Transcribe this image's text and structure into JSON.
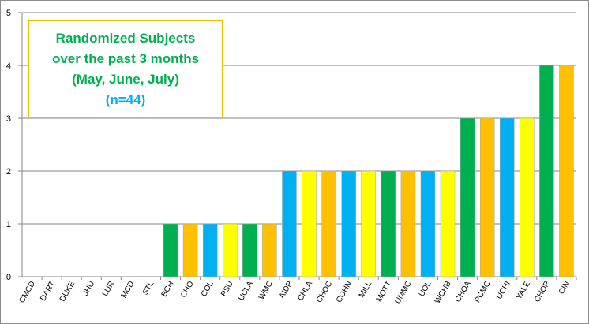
{
  "chart_data": {
    "type": "bar",
    "title_lines": [
      "Randomized Subjects",
      "over the past 3 months",
      "(May, June, July)"
    ],
    "n_label": "(n=44)",
    "categories": [
      "CMCD",
      "DART",
      "DUKE",
      "JHU",
      "LUR",
      "MCD",
      "STL",
      "BCH",
      "CHO",
      "COL",
      "PSU",
      "UCLA",
      "WMC",
      "AIDP",
      "CHLA",
      "CHOC",
      "COHN",
      "MILL",
      "MOTT",
      "UMMC",
      "UOL",
      "WCHB",
      "CHOA",
      "PCMC",
      "UCHI",
      "YALE",
      "CHOP",
      "CIN"
    ],
    "values": [
      0,
      0,
      0,
      0,
      0,
      0,
      0,
      1,
      1,
      1,
      1,
      1,
      1,
      2,
      2,
      2,
      2,
      2,
      2,
      2,
      2,
      2,
      3,
      3,
      3,
      3,
      4,
      4
    ],
    "bar_colors": [
      "#00b050",
      "#00b050",
      "#00b050",
      "#00b050",
      "#00b050",
      "#00b050",
      "#00b050",
      "#00b050",
      "#ffc000",
      "#00b0f0",
      "#ffff00",
      "#00b050",
      "#ffc000",
      "#00b0f0",
      "#ffff00",
      "#ffc000",
      "#00b0f0",
      "#ffff00",
      "#00b050",
      "#ffc000",
      "#00b0f0",
      "#ffff00",
      "#00b050",
      "#ffc000",
      "#00b0f0",
      "#ffff00",
      "#00b050",
      "#ffc000"
    ],
    "ylim": [
      0,
      5
    ],
    "yticks": [
      0,
      1,
      2,
      3,
      4,
      5
    ],
    "grid": true,
    "xlabel": "",
    "ylabel": "",
    "colors": {
      "title": "#00b050",
      "n_label": "#00b0f0",
      "title_border": "#e6c200",
      "gridline": "#868686"
    }
  }
}
